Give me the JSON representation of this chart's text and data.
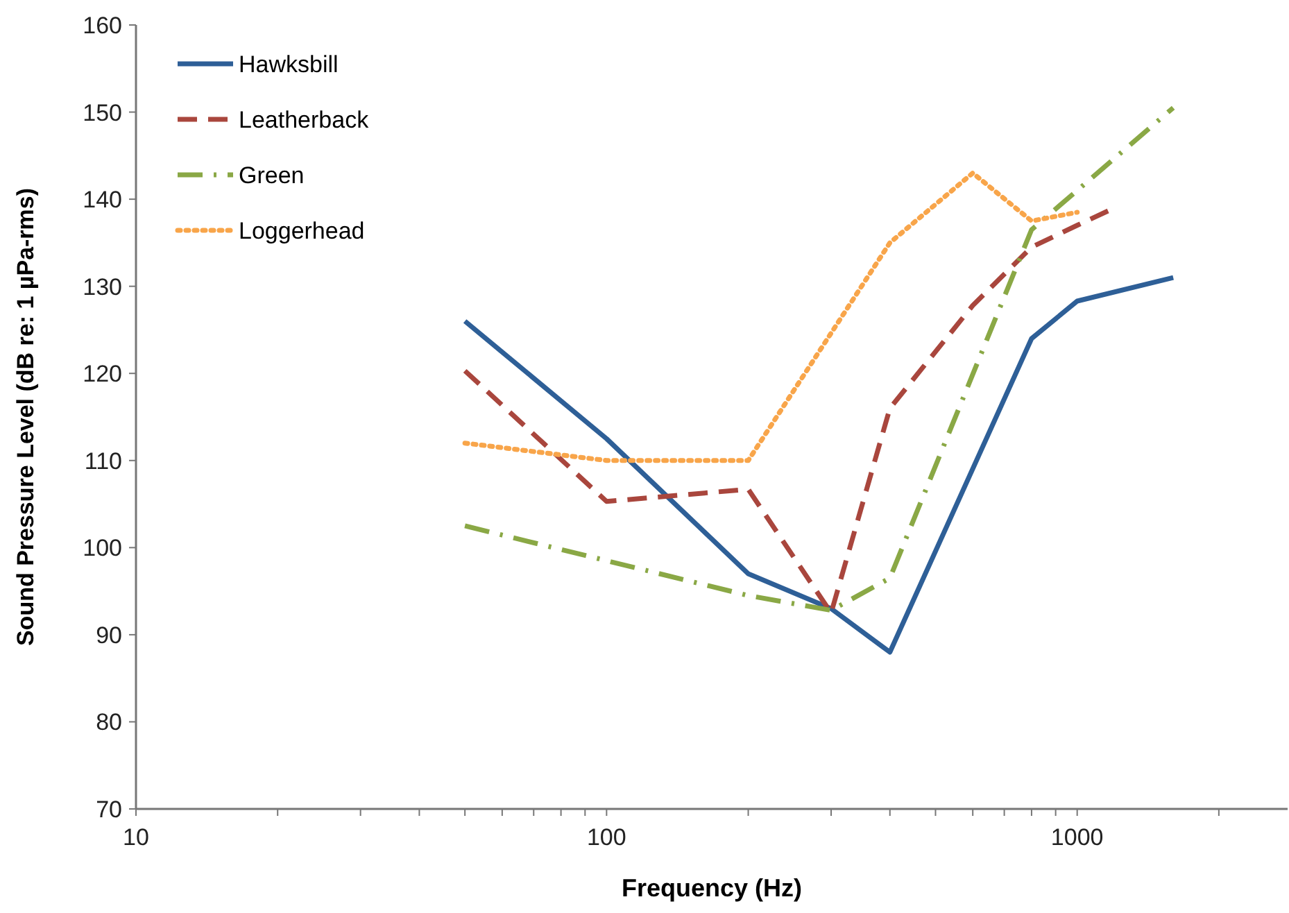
{
  "chart_data": {
    "type": "line",
    "xlabel": "Frequency (Hz)",
    "ylabel": "Sound Pressure Level (dB re: 1 µPa-rms)",
    "log": "x",
    "xlim": [
      10,
      2800
    ],
    "ylim": [
      70,
      160
    ],
    "xticks": [
      10,
      {
        "value": 20,
        "label": null
      },
      {
        "value": 30,
        "label": null
      },
      {
        "value": 40,
        "label": null
      },
      {
        "value": 50,
        "label": null
      },
      {
        "value": 60,
        "label": null
      },
      {
        "value": 70,
        "label": null
      },
      {
        "value": 80,
        "label": null
      },
      {
        "value": 90,
        "label": null
      },
      100,
      {
        "value": 200,
        "label": null
      },
      {
        "value": 300,
        "label": null
      },
      {
        "value": 400,
        "label": null
      },
      {
        "value": 500,
        "label": null
      },
      {
        "value": 600,
        "label": null
      },
      {
        "value": 700,
        "label": null
      },
      {
        "value": 800,
        "label": null
      },
      {
        "value": 900,
        "label": null
      },
      1000,
      {
        "value": 2000,
        "label": null
      }
    ],
    "yticks": [
      70,
      80,
      90,
      100,
      110,
      120,
      130,
      140,
      150,
      160
    ],
    "grid": false,
    "legend": "top left",
    "marker": "none",
    "series": [
      {
        "name": "Hawksbill",
        "color": "#2e5f97",
        "line_style": "solid",
        "x": [
          50,
          100,
          200,
          300,
          400,
          800,
          1000,
          1600
        ],
        "values": [
          126,
          112.5,
          97,
          93,
          88,
          124,
          128.3,
          131
        ]
      },
      {
        "name": "Leatherback",
        "color": "#a9463d",
        "line_style": "dashed",
        "x": [
          50,
          100,
          200,
          300,
          400,
          600,
          800,
          1000,
          1200
        ],
        "values": [
          120.3,
          105.3,
          106.7,
          92.5,
          116,
          127.8,
          134.5,
          137,
          139
        ]
      },
      {
        "name": "Green",
        "color": "#8aa845",
        "line_style": "dashdot",
        "x": [
          50,
          200,
          300,
          400,
          800,
          1000,
          1600
        ],
        "values": [
          102.5,
          94.5,
          92.8,
          96.5,
          136.5,
          141,
          150.5
        ]
      },
      {
        "name": "Loggerhead",
        "color": "#f8a54a",
        "line_style": "dotted",
        "x": [
          50,
          100,
          200,
          400,
          600,
          800,
          1000
        ],
        "values": [
          112,
          110,
          110,
          135,
          143,
          137.5,
          138.5
        ]
      }
    ]
  }
}
